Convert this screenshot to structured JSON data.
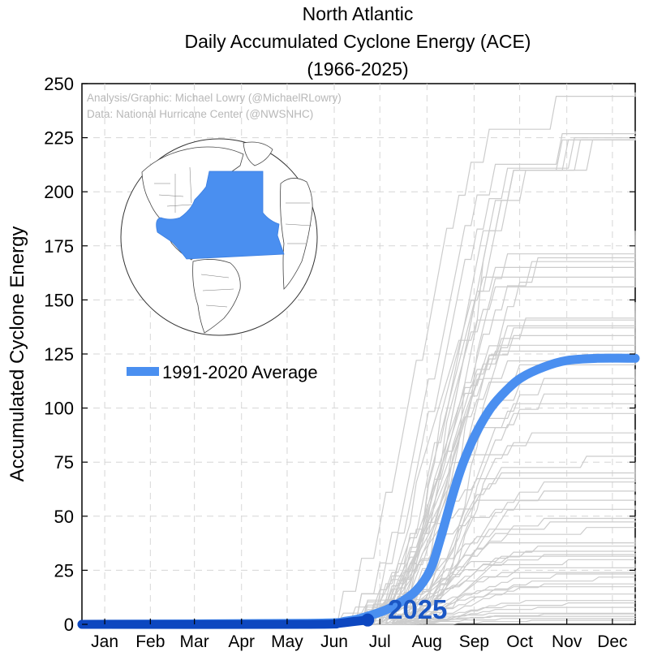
{
  "title_lines": [
    "North Atlantic",
    "Daily Accumulated Cyclone Energy (ACE)",
    "(1966-2025)"
  ],
  "credits": [
    "Analysis/Graphic: Michael Lowry (@MichaelRLowry)",
    "Data: National Hurricane Center (@NWSNHC)"
  ],
  "colors": {
    "average": "#4a8ff0",
    "current": "#0d47c0",
    "history": "#cccccc",
    "grid": "#d6d6d6",
    "globe_basin": "#4a8ff0"
  },
  "globe_icon": "globe-north-atlantic-basin-map",
  "chart_data": {
    "type": "line",
    "ylabel": "Accumulated Cyclone Energy",
    "ylim": [
      0,
      250
    ],
    "xlim": [
      1,
      365
    ],
    "yticks": [
      0,
      25,
      50,
      75,
      100,
      125,
      150,
      175,
      200,
      225,
      250
    ],
    "month_labels": [
      "Jan",
      "Feb",
      "Mar",
      "Apr",
      "May",
      "Jun",
      "Jul",
      "Aug",
      "Sep",
      "Oct",
      "Nov",
      "Dec"
    ],
    "month_center_days": [
      16,
      46,
      75,
      106,
      136,
      167,
      197,
      228,
      259,
      289,
      320,
      350
    ],
    "gridlines": true,
    "average": {
      "name": "1991-2020 Average",
      "points": [
        [
          1,
          0
        ],
        [
          150,
          0.5
        ],
        [
          175,
          1.5
        ],
        [
          190,
          4
        ],
        [
          205,
          8
        ],
        [
          220,
          15
        ],
        [
          230,
          25
        ],
        [
          237,
          40
        ],
        [
          245,
          60
        ],
        [
          252,
          75
        ],
        [
          260,
          88
        ],
        [
          270,
          100
        ],
        [
          280,
          108
        ],
        [
          290,
          114
        ],
        [
          305,
          119
        ],
        [
          320,
          122
        ],
        [
          340,
          123
        ],
        [
          365,
          123
        ]
      ]
    },
    "current": {
      "label": "2025",
      "points": [
        [
          1,
          0
        ],
        [
          150,
          0
        ],
        [
          170,
          0.5
        ],
        [
          180,
          1.3
        ],
        [
          189,
          2
        ]
      ]
    },
    "history_final_values": [
      246,
      228,
      226,
      225,
      225,
      225,
      225,
      182,
      180,
      178,
      175,
      170,
      165,
      149,
      148,
      145,
      144,
      140,
      135,
      132,
      127,
      125,
      118,
      115,
      110,
      105,
      100,
      90,
      85,
      78,
      75,
      72,
      70,
      65,
      60,
      55,
      50,
      48,
      45,
      40,
      38,
      35,
      33,
      32,
      30,
      28,
      25,
      24,
      22,
      20,
      18,
      15,
      12,
      10,
      8,
      6,
      5,
      4,
      3,
      2
    ]
  },
  "legend": {
    "label": "1991-2020 Average",
    "placement": "middle-left"
  },
  "annotation": {
    "text": "2025"
  }
}
